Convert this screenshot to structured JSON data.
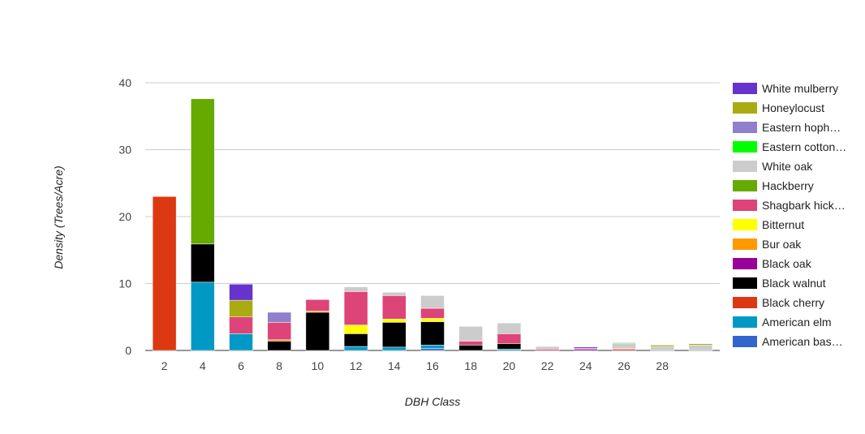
{
  "chart_data": {
    "type": "bar",
    "stacked": true,
    "title": "",
    "xlabel": "DBH Class",
    "ylabel": "Density (Trees/Acre)",
    "ylim": [
      0,
      40
    ],
    "yticks": [
      0,
      10,
      20,
      30,
      40
    ],
    "grid": true,
    "legend_position": "right",
    "categories": [
      "2",
      "4",
      "6",
      "8",
      "10",
      "12",
      "14",
      "16",
      "18",
      "20",
      "22",
      "24",
      "26",
      "28",
      ""
    ],
    "series": [
      {
        "name": "American bas…",
        "color": "#3366cc",
        "values": [
          0,
          0,
          0,
          0,
          0,
          0,
          0,
          0.3,
          0,
          0,
          0,
          0,
          0,
          0,
          0
        ]
      },
      {
        "name": "American elm",
        "color": "#0099c6",
        "values": [
          0,
          10.2,
          2.5,
          0,
          0,
          0.6,
          0.5,
          0.5,
          0,
          0.2,
          0,
          0,
          0,
          0,
          0
        ]
      },
      {
        "name": "Black cherry",
        "color": "#dc3912",
        "values": [
          23,
          0,
          0,
          0,
          0,
          0,
          0,
          0,
          0,
          0,
          0,
          0,
          0.2,
          0,
          0
        ]
      },
      {
        "name": "Black walnut",
        "color": "#000000",
        "values": [
          0,
          5.7,
          0,
          1.4,
          5.7,
          1.9,
          3.7,
          3.5,
          0.8,
          0.8,
          0,
          0,
          0,
          0,
          0
        ]
      },
      {
        "name": "Black oak",
        "color": "#990099",
        "values": [
          0,
          0,
          0,
          0,
          0,
          0,
          0,
          0,
          0,
          0,
          0,
          0.2,
          0,
          0,
          0
        ]
      },
      {
        "name": "Bur oak",
        "color": "#ff9900",
        "values": [
          0,
          0,
          0,
          0.2,
          0.2,
          0,
          0,
          0,
          0,
          0,
          0,
          0,
          0,
          0,
          0
        ]
      },
      {
        "name": "Bitternut",
        "color": "#ffff00",
        "values": [
          0,
          0,
          0,
          0,
          0,
          1.3,
          0.5,
          0.5,
          0,
          0,
          0,
          0,
          0,
          0,
          0
        ]
      },
      {
        "name": "Shagbark hick…",
        "color": "#dd4477",
        "values": [
          0,
          0,
          2.5,
          2.6,
          1.7,
          5.0,
          3.5,
          1.5,
          0.6,
          1.5,
          0.2,
          0.1,
          0.1,
          0,
          0
        ]
      },
      {
        "name": "Hackberry",
        "color": "#66aa00",
        "values": [
          0,
          21.7,
          0,
          0,
          0,
          0,
          0,
          0,
          0,
          0,
          0,
          0,
          0,
          0,
          0
        ]
      },
      {
        "name": "White oak",
        "color": "#cccccc",
        "values": [
          0,
          0,
          0,
          0,
          0,
          0.7,
          0.5,
          1.9,
          2.2,
          1.6,
          0.4,
          0,
          0.8,
          0.6,
          0.8
        ]
      },
      {
        "name": "Eastern cotton…",
        "color": "#00ff00",
        "values": [
          0,
          0,
          0,
          0,
          0,
          0,
          0,
          0,
          0,
          0,
          0,
          0,
          0.1,
          0,
          0
        ]
      },
      {
        "name": "Eastern hoph…",
        "color": "#8f7fcc",
        "values": [
          0,
          0,
          0,
          1.5,
          0,
          0,
          0,
          0,
          0,
          0,
          0,
          0,
          0,
          0,
          0
        ]
      },
      {
        "name": "Honeylocust",
        "color": "#aaaa11",
        "values": [
          0,
          0,
          2.5,
          0,
          0,
          0,
          0,
          0,
          0,
          0,
          0,
          0,
          0,
          0.2,
          0.2
        ]
      },
      {
        "name": "White mulberry",
        "color": "#6633cc",
        "values": [
          0,
          0,
          2.4,
          0,
          0,
          0,
          0,
          0,
          0,
          0,
          0,
          0.2,
          0,
          0,
          0
        ]
      }
    ]
  }
}
